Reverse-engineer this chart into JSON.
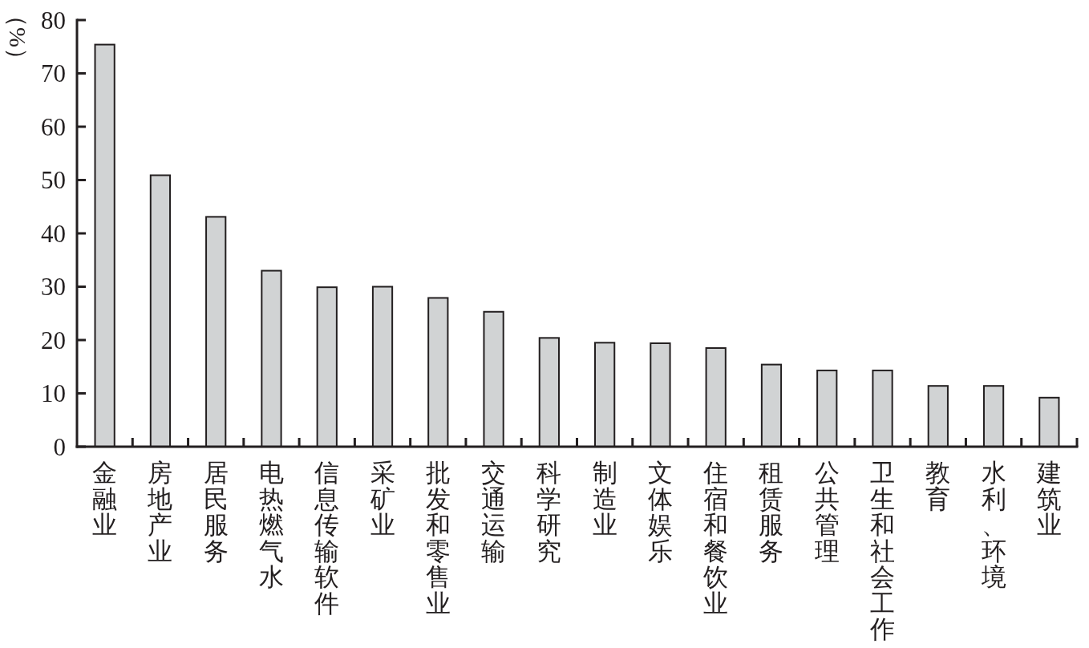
{
  "chart_data": {
    "type": "bar",
    "ylabel": "（%）",
    "categories": [
      "金融业",
      "房地产业",
      "居民服务",
      "电热燃气水",
      "信息传输软件",
      "采矿业",
      "批发和零售业",
      "交通运输",
      "科学研究",
      "制造业",
      "文体娱乐",
      "住宿和餐饮业",
      "租赁服务",
      "公共管理",
      "卫生和社会工作",
      "教育",
      "水利、环境",
      "建筑业"
    ],
    "values": [
      75.4,
      50.9,
      43.1,
      33.0,
      29.9,
      30.0,
      27.9,
      25.3,
      20.4,
      19.5,
      19.4,
      18.5,
      15.4,
      14.3,
      14.3,
      11.4,
      11.4,
      9.2
    ],
    "color": "#d1d3d4",
    "ylim": [
      0,
      80
    ],
    "yticks": [
      0,
      10,
      20,
      30,
      40,
      50,
      60,
      70,
      80
    ]
  }
}
